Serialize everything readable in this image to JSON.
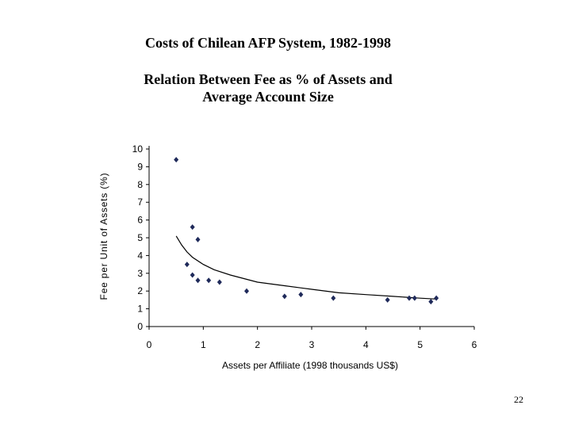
{
  "slide": {
    "title": "Costs of Chilean AFP System, 1982-1998",
    "subtitle_line1": "Relation Between Fee as % of Assets and",
    "subtitle_line2": "Average Account Size",
    "page_number": "22"
  },
  "chart_data": {
    "type": "scatter",
    "title": "Costs of Chilean AFP System, 1982-1998",
    "subtitle": "Relation Between Fee as % of Assets and Average Account Size",
    "xlabel": "Assets per Affiliate (1998 thousands US$)",
    "ylabel": "Fee per Unit of Assets (%)",
    "xlim": [
      0,
      6
    ],
    "ylim": [
      0,
      10
    ],
    "xticks": [
      "0",
      "1",
      "2",
      "3",
      "4",
      "5",
      "6"
    ],
    "yticks": [
      "0",
      "1",
      "2",
      "3",
      "4",
      "5",
      "6",
      "7",
      "8",
      "9",
      "10"
    ],
    "grid": false,
    "legend": "none",
    "marker": "diamond",
    "marker_color": "#1f2a5a",
    "series": [
      {
        "points": [
          [
            0.5,
            9.4
          ],
          [
            0.7,
            3.5
          ],
          [
            0.8,
            5.6
          ],
          [
            0.8,
            2.9
          ],
          [
            0.9,
            4.9
          ],
          [
            0.9,
            2.6
          ],
          [
            1.1,
            2.6
          ],
          [
            1.3,
            2.5
          ],
          [
            1.8,
            2.0
          ],
          [
            2.5,
            1.7
          ],
          [
            2.8,
            1.8
          ],
          [
            3.4,
            1.6
          ],
          [
            4.4,
            1.5
          ],
          [
            4.8,
            1.6
          ],
          [
            4.9,
            1.6
          ],
          [
            5.2,
            1.4
          ],
          [
            5.3,
            1.6
          ]
        ]
      }
    ],
    "trendline": {
      "type": "power",
      "x_range": [
        0.5,
        5.3
      ],
      "points": [
        [
          0.5,
          5.1
        ],
        [
          0.6,
          4.6
        ],
        [
          0.7,
          4.2
        ],
        [
          0.8,
          3.9
        ],
        [
          1.0,
          3.5
        ],
        [
          1.2,
          3.2
        ],
        [
          1.5,
          2.9
        ],
        [
          2.0,
          2.5
        ],
        [
          2.5,
          2.3
        ],
        [
          3.0,
          2.1
        ],
        [
          3.5,
          1.9
        ],
        [
          4.0,
          1.8
        ],
        [
          4.5,
          1.7
        ],
        [
          5.0,
          1.6
        ],
        [
          5.3,
          1.55
        ]
      ]
    }
  }
}
